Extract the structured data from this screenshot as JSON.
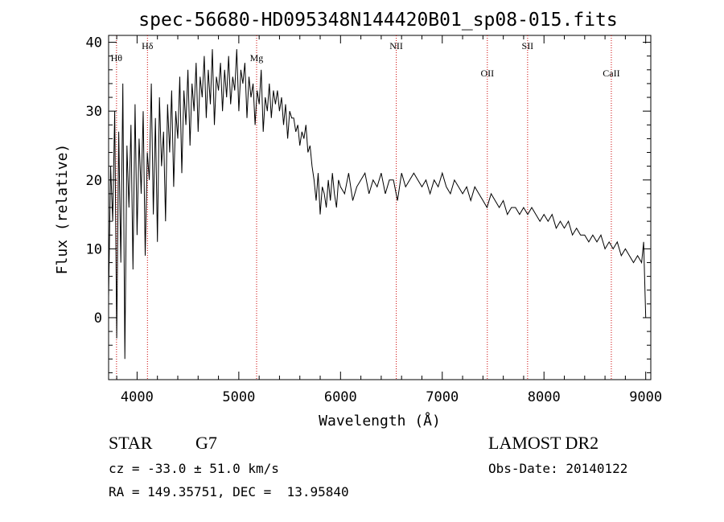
{
  "chart_data": {
    "type": "line",
    "title": "spec-56680-HD095348N144420B01_sp08-015.fits",
    "xlabel": "Wavelength (Å)",
    "ylabel": "Flux (relative)",
    "xlim": [
      3720,
      9050
    ],
    "ylim": [
      -9,
      41
    ],
    "xticks": [
      4000,
      5000,
      6000,
      7000,
      8000,
      9000
    ],
    "yticks": [
      0,
      10,
      20,
      30,
      40
    ],
    "grid": false,
    "series": [
      {
        "x": [
          3720,
          3740,
          3760,
          3780,
          3800,
          3820,
          3840,
          3860,
          3880,
          3900,
          3920,
          3940,
          3960,
          3980,
          4000,
          4020,
          4040,
          4060,
          4080,
          4100,
          4120,
          4140,
          4160,
          4180,
          4200,
          4220,
          4240,
          4260,
          4280,
          4300,
          4320,
          4340,
          4360,
          4380,
          4400,
          4420,
          4440,
          4460,
          4480,
          4500,
          4520,
          4540,
          4560,
          4580,
          4600,
          4620,
          4640,
          4660,
          4680,
          4700,
          4720,
          4740,
          4760,
          4780,
          4800,
          4820,
          4840,
          4860,
          4880,
          4900,
          4920,
          4940,
          4960,
          4980,
          5000,
          5020,
          5040,
          5060,
          5080,
          5100,
          5120,
          5140,
          5160,
          5180,
          5200,
          5220,
          5240,
          5260,
          5280,
          5300,
          5320,
          5340,
          5360,
          5380,
          5400,
          5420,
          5440,
          5460,
          5480,
          5500,
          5520,
          5540,
          5560,
          5580,
          5600,
          5620,
          5640,
          5660,
          5680,
          5700,
          5720,
          5740,
          5760,
          5780,
          5800,
          5820,
          5840,
          5860,
          5880,
          5900,
          5920,
          5940,
          5960,
          5980,
          6000,
          6040,
          6080,
          6120,
          6160,
          6200,
          6240,
          6280,
          6320,
          6360,
          6400,
          6440,
          6480,
          6520,
          6560,
          6600,
          6640,
          6680,
          6720,
          6760,
          6800,
          6840,
          6880,
          6920,
          6960,
          7000,
          7040,
          7080,
          7120,
          7160,
          7200,
          7240,
          7280,
          7320,
          7360,
          7400,
          7440,
          7480,
          7520,
          7560,
          7600,
          7640,
          7680,
          7720,
          7760,
          7800,
          7840,
          7880,
          7920,
          7960,
          8000,
          8040,
          8080,
          8120,
          8160,
          8200,
          8240,
          8280,
          8320,
          8360,
          8400,
          8440,
          8480,
          8520,
          8560,
          8600,
          8640,
          8680,
          8720,
          8760,
          8800,
          8840,
          8880,
          8920,
          8960,
          8980,
          9000
        ],
        "y": [
          3,
          22,
          14,
          30,
          -3,
          27,
          8,
          34,
          -6,
          25,
          16,
          28,
          7,
          31,
          12,
          26,
          18,
          30,
          9,
          24,
          20,
          34,
          15,
          29,
          11,
          32,
          22,
          27,
          14,
          31,
          24,
          33,
          19,
          30,
          26,
          35,
          21,
          33,
          28,
          36,
          25,
          34,
          30,
          37,
          27,
          35,
          32,
          38,
          29,
          36,
          31,
          39,
          28,
          35,
          33,
          37,
          30,
          36,
          32,
          38,
          31,
          35,
          33,
          39,
          30,
          36,
          34,
          37,
          29,
          35,
          32,
          34,
          28,
          33,
          31,
          36,
          27,
          32,
          30,
          34,
          29,
          33,
          31,
          33,
          30,
          32,
          28,
          31,
          26,
          30,
          29,
          29,
          27,
          28,
          25,
          27,
          26,
          28,
          24,
          25,
          22,
          20,
          17,
          21,
          15,
          19,
          18,
          16,
          20,
          17,
          21,
          18,
          16,
          20,
          19,
          18,
          21,
          17,
          19,
          20,
          21,
          18,
          20,
          19,
          21,
          18,
          20,
          20,
          17,
          21,
          19,
          20,
          21,
          20,
          19,
          20,
          18,
          20,
          19,
          21,
          19,
          18,
          20,
          19,
          18,
          19,
          17,
          19,
          18,
          17,
          16,
          18,
          17,
          16,
          17,
          15,
          16,
          16,
          15,
          16,
          15,
          16,
          15,
          14,
          15,
          14,
          15,
          13,
          14,
          13,
          14,
          12,
          13,
          12,
          12,
          11,
          12,
          11,
          12,
          10,
          11,
          10,
          11,
          9,
          10,
          9,
          8,
          9,
          8,
          11,
          0
        ]
      }
    ],
    "vlines": [
      {
        "label": "Hθ",
        "x": 3798
      },
      {
        "label": "Hδ",
        "x": 4102
      },
      {
        "label": "Mg",
        "x": 5175
      },
      {
        "label": "NII",
        "x": 6548
      },
      {
        "label": "OII",
        "x": 7443
      },
      {
        "label": "SII",
        "x": 7839
      },
      {
        "label": "CaII",
        "x": 8662
      }
    ],
    "line_color": "#000000",
    "vline_color": "#cc0000"
  },
  "info": {
    "obj_class": "STAR",
    "subclass": "G7",
    "cz": "cz = -33.0 ± 51.0 km/s",
    "coords": "RA = 149.35751, DEC =  13.95840",
    "survey": "LAMOST DR2",
    "obs_date": "Obs-Date: 20140122"
  }
}
